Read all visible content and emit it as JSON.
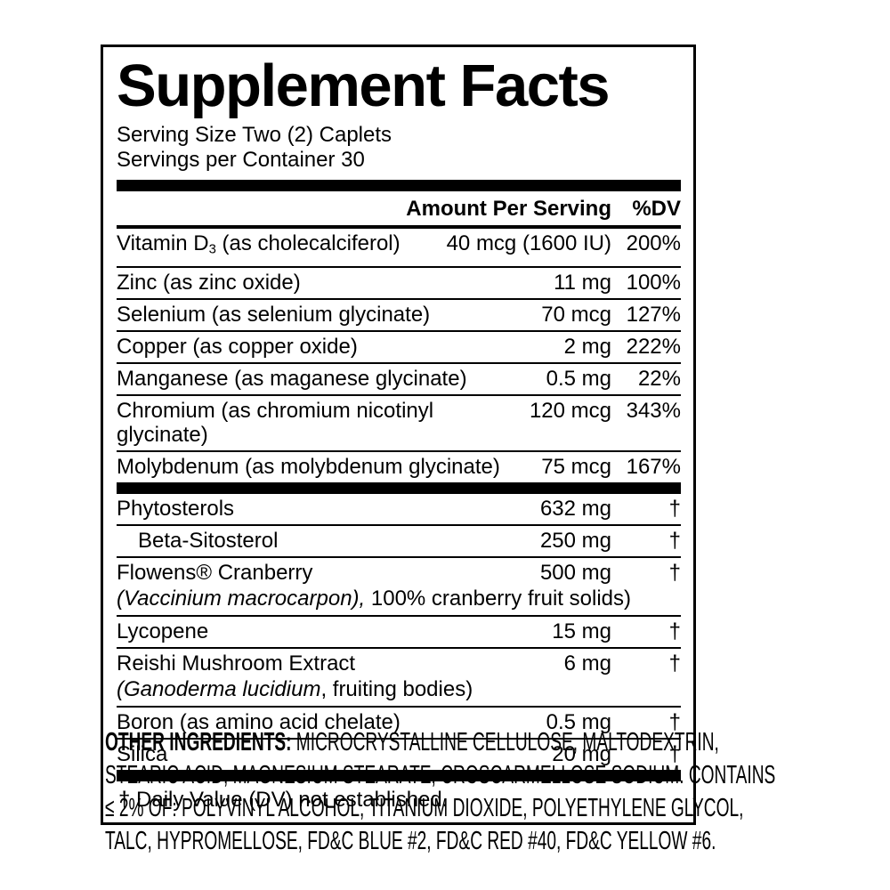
{
  "colors": {
    "text": "#000000",
    "background": "#ffffff"
  },
  "label": {
    "title": "Supplement Facts",
    "serving_size": "Serving Size Two (2) Caplets",
    "servings_per_container": "Servings per Container 30",
    "columns": {
      "amount": "Amount Per Serving",
      "dv": "%DV"
    },
    "sections": [
      {
        "rows": [
          {
            "name": [
              {
                "t": "Vitamin D"
              },
              {
                "t": "3",
                "s": "sub"
              },
              {
                "t": " (as cholecalciferol)"
              }
            ],
            "amount": "40 mcg (1600 IU)",
            "dv": "200%"
          },
          {
            "name": [
              {
                "t": "Zinc (as zinc oxide)"
              }
            ],
            "amount": "11 mg",
            "dv": "100%"
          },
          {
            "name": [
              {
                "t": "Selenium (as selenium glycinate)"
              }
            ],
            "amount": "70 mcg",
            "dv": "127%"
          },
          {
            "name": [
              {
                "t": "Copper (as copper oxide)"
              }
            ],
            "amount": "2 mg",
            "dv": "222%"
          },
          {
            "name": [
              {
                "t": "Manganese (as maganese glycinate)"
              }
            ],
            "amount": "0.5 mg",
            "dv": "22%"
          },
          {
            "name": [
              {
                "t": "Chromium (as chromium nicotinyl glycinate)"
              }
            ],
            "amount": "120 mcg",
            "dv": "343%"
          },
          {
            "name": [
              {
                "t": "Molybdenum (as molybdenum glycinate)"
              }
            ],
            "amount": "75 mcg",
            "dv": "167%"
          }
        ]
      },
      {
        "rows": [
          {
            "name": [
              {
                "t": "Phytosterols"
              }
            ],
            "amount": "632 mg",
            "dv": "†"
          },
          {
            "name": [
              {
                "t": "Beta-Sitosterol"
              }
            ],
            "amount": "250 mg",
            "dv": "†",
            "indent": true
          },
          {
            "name": [
              {
                "t": "Flowens® Cranberry"
              }
            ],
            "amount": "500 mg",
            "dv": "†",
            "subline": [
              {
                "t": "(Vaccinium macrocarpon),",
                "s": "i"
              },
              {
                "t": " 100% cranberry fruit solids)"
              }
            ]
          },
          {
            "name": [
              {
                "t": "Lycopene"
              }
            ],
            "amount": "15 mg",
            "dv": "†"
          },
          {
            "name": [
              {
                "t": "Reishi Mushroom Extract"
              }
            ],
            "amount": "6 mg",
            "dv": "†",
            "subline": [
              {
                "t": "(Ganoderma lucidium",
                "s": "i"
              },
              {
                "t": ", fruiting bodies)"
              }
            ]
          },
          {
            "name": [
              {
                "t": "Boron (as amino acid chelate)"
              }
            ],
            "amount": "0.5 mg",
            "dv": "†"
          },
          {
            "name": [
              {
                "t": "Silica"
              }
            ],
            "amount": "20 mg",
            "dv": "†"
          }
        ]
      }
    ],
    "footnote": "† Daily Value (DV) not established."
  },
  "other_ingredients": {
    "heading": "OTHER INGREDIENTS:",
    "lines": [
      " MICROCRYSTALLINE CELLULOSE, MALTODEXTRIN,",
      "STEARIC ACID, MAGNESIUM STEARATE, CROSCARMELLOSE SODIUM. CONTAINS",
      "≤ 2% OF: POLYVINYL ALCOHOL, TITANIUM DIOXIDE, POLYETHYLENE GLYCOL,",
      "TALC, HYPROMELLOSE, FD&C BLUE #2, FD&C RED #40, FD&C YELLOW #6."
    ]
  }
}
